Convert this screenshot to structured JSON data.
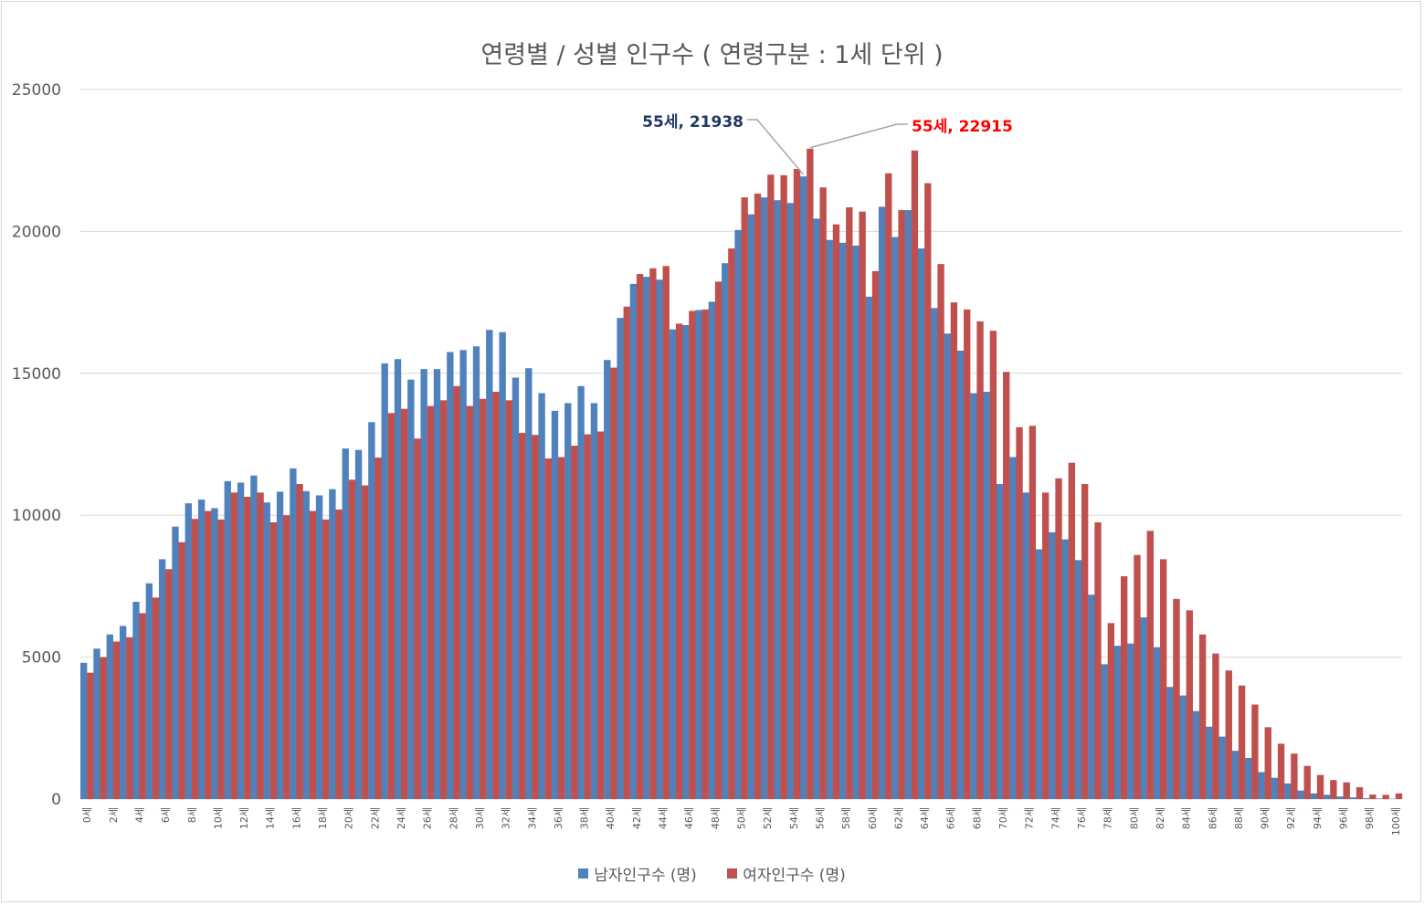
{
  "chart_data": {
    "type": "bar",
    "title": "연령별  / 성별 인구수 ( 연령구분 : 1세 단위 )",
    "categories": [
      "0세",
      "1세",
      "2세",
      "3세",
      "4세",
      "5세",
      "6세",
      "7세",
      "8세",
      "9세",
      "10세",
      "11세",
      "12세",
      "13세",
      "14세",
      "15세",
      "16세",
      "17세",
      "18세",
      "19세",
      "20세",
      "21세",
      "22세",
      "23세",
      "24세",
      "25세",
      "26세",
      "27세",
      "28세",
      "29세",
      "30세",
      "31세",
      "32세",
      "33세",
      "34세",
      "35세",
      "36세",
      "37세",
      "38세",
      "39세",
      "40세",
      "41세",
      "42세",
      "43세",
      "44세",
      "45세",
      "46세",
      "47세",
      "48세",
      "49세",
      "50세",
      "51세",
      "52세",
      "53세",
      "54세",
      "55세",
      "56세",
      "57세",
      "58세",
      "59세",
      "60세",
      "61세",
      "62세",
      "63세",
      "64세",
      "65세",
      "66세",
      "67세",
      "68세",
      "69세",
      "70세",
      "71세",
      "72세",
      "73세",
      "74세",
      "75세",
      "76세",
      "77세",
      "78세",
      "79세",
      "80세",
      "81세",
      "82세",
      "83세",
      "84세",
      "85세",
      "86세",
      "87세",
      "88세",
      "89세",
      "90세",
      "91세",
      "92세",
      "93세",
      "94세",
      "95세",
      "96세",
      "97세",
      "98세",
      "99세",
      "100세"
    ],
    "series": [
      {
        "name": "남자인구수 (명)",
        "color": "#4f81bd",
        "values": [
          4800,
          5300,
          5800,
          6100,
          6950,
          7600,
          8450,
          9600,
          10420,
          10550,
          10250,
          11200,
          11150,
          11400,
          10450,
          10830,
          11650,
          10850,
          10700,
          10920,
          12350,
          12300,
          13280,
          15350,
          15500,
          14780,
          15150,
          15150,
          15750,
          15820,
          15950,
          16530,
          16450,
          14850,
          15180,
          14300,
          13680,
          13950,
          14550,
          13950,
          15470,
          16950,
          18150,
          18400,
          18300,
          16550,
          16700,
          17230,
          17520,
          18880,
          20050,
          20600,
          21200,
          21100,
          21000,
          21938,
          20450,
          19700,
          19600,
          19500,
          17700,
          20870,
          19800,
          20750,
          19400,
          17300,
          16400,
          15800,
          14300,
          14350,
          11100,
          12050,
          10800,
          8800,
          9400,
          9150,
          8420,
          7200,
          4750,
          5400,
          5480,
          6400,
          5350,
          3950,
          3650,
          3100,
          2550,
          2200,
          1700,
          1450,
          950,
          750,
          550,
          300,
          200,
          150,
          90,
          60,
          30,
          20,
          10
        ]
      },
      {
        "name": "여자인구수 (명)",
        "color": "#c0504d",
        "values": [
          4450,
          5000,
          5550,
          5700,
          6550,
          7100,
          8100,
          9050,
          9870,
          10150,
          9850,
          10800,
          10650,
          10800,
          9750,
          10000,
          11100,
          10150,
          9850,
          10200,
          11250,
          11050,
          12030,
          13600,
          13750,
          12700,
          13850,
          14050,
          14550,
          13850,
          14100,
          14350,
          14050,
          12900,
          12830,
          12000,
          12050,
          12450,
          12850,
          12950,
          15200,
          17350,
          18500,
          18700,
          18780,
          16750,
          17200,
          17250,
          18230,
          19400,
          21200,
          21330,
          22000,
          21980,
          22200,
          22915,
          21550,
          20250,
          20850,
          20700,
          18600,
          22050,
          20750,
          22850,
          21700,
          18850,
          17500,
          17250,
          16830,
          16500,
          15050,
          13100,
          13150,
          10800,
          11300,
          11850,
          11100,
          9750,
          6200,
          7850,
          8600,
          9450,
          8450,
          7050,
          6650,
          5800,
          5130,
          4530,
          4000,
          3330,
          2530,
          1950,
          1600,
          1170,
          850,
          670,
          590,
          420,
          160,
          150,
          200
        ]
      }
    ],
    "ylim": [
      0,
      25000
    ],
    "yticks": [
      "0",
      "5000",
      "10000",
      "15000",
      "20000",
      "25000"
    ],
    "grid": true,
    "legend": "bottom",
    "annotations": [
      {
        "label": "55세, 21938",
        "color": "#1f3864"
      },
      {
        "label": "55세, 22915",
        "color": "#ff0000"
      }
    ]
  }
}
